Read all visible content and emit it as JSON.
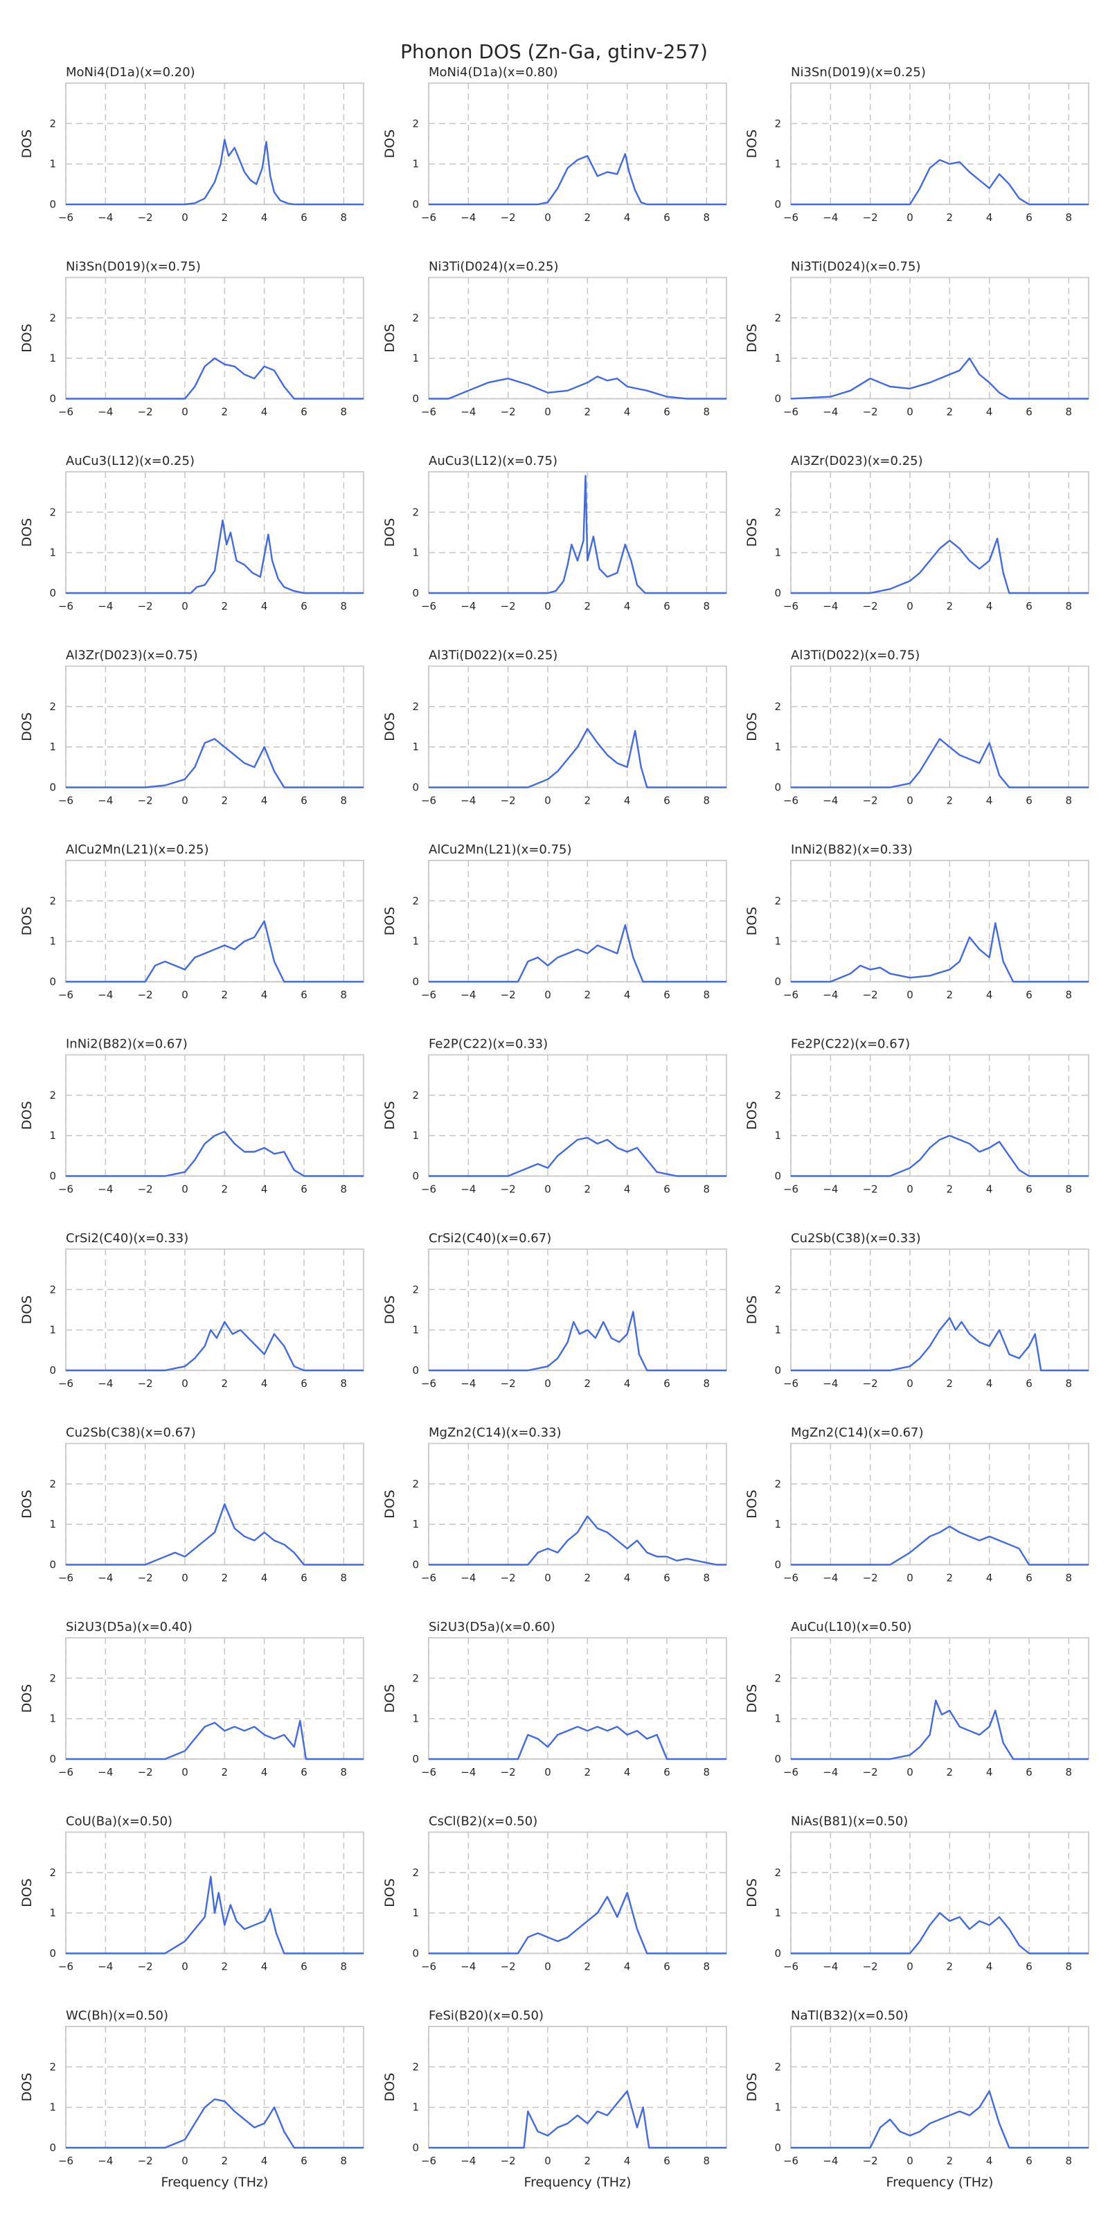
{
  "figure": {
    "title": "Phonon DOS (Zn-Ga, gtinv-257)",
    "line_color": "#4169e1"
  },
  "chart_data": {
    "type": "line",
    "xlabel": "Frequency (THz)",
    "ylabel": "DOS",
    "xlim": [
      -6,
      9
    ],
    "ylim": [
      0,
      3
    ],
    "xticks": [
      -6,
      -4,
      -2,
      0,
      2,
      4,
      6,
      8
    ],
    "yticks": [
      0,
      1,
      2
    ],
    "grid": true,
    "panels": [
      {
        "label": "MoNi4(D1a)(x=0.20)",
        "x": [
          0,
          0.5,
          1,
          1.5,
          1.8,
          2,
          2.2,
          2.5,
          3,
          3.3,
          3.6,
          3.9,
          4.1,
          4.3,
          4.5,
          4.8,
          5.2,
          5.5
        ],
        "y": [
          0,
          0.03,
          0.15,
          0.55,
          1.0,
          1.6,
          1.2,
          1.4,
          0.8,
          0.6,
          0.5,
          0.9,
          1.55,
          0.7,
          0.3,
          0.1,
          0.02,
          0
        ]
      },
      {
        "label": "MoNi4(D1a)(x=0.80)",
        "x": [
          -0.5,
          0,
          0.5,
          1,
          1.5,
          2,
          2.5,
          3,
          3.5,
          3.9,
          4.1,
          4.4,
          4.7,
          5
        ],
        "y": [
          0,
          0.05,
          0.4,
          0.9,
          1.1,
          1.2,
          0.7,
          0.8,
          0.75,
          1.25,
          0.8,
          0.35,
          0.05,
          0
        ]
      },
      {
        "label": "Ni3Sn(D019)(x=0.25)",
        "x": [
          0,
          0.5,
          1,
          1.5,
          2,
          2.5,
          3,
          3.5,
          4,
          4.5,
          5,
          5.5,
          6
        ],
        "y": [
          0,
          0.4,
          0.9,
          1.1,
          1.0,
          1.05,
          0.8,
          0.6,
          0.4,
          0.75,
          0.5,
          0.15,
          0
        ]
      },
      {
        "label": "Ni3Sn(D019)(x=0.75)",
        "x": [
          0,
          0.5,
          1,
          1.5,
          2,
          2.5,
          3,
          3.5,
          4,
          4.5,
          5,
          5.5
        ],
        "y": [
          0,
          0.3,
          0.8,
          1.0,
          0.85,
          0.8,
          0.6,
          0.5,
          0.8,
          0.7,
          0.3,
          0
        ]
      },
      {
        "label": "Ni3Ti(D024)(x=0.25)",
        "x": [
          -5,
          -4,
          -3,
          -2,
          -1,
          0,
          1,
          2,
          2.5,
          3,
          3.5,
          4,
          5,
          6,
          7
        ],
        "y": [
          0,
          0.2,
          0.4,
          0.5,
          0.35,
          0.15,
          0.2,
          0.4,
          0.55,
          0.45,
          0.5,
          0.3,
          0.2,
          0.05,
          0
        ]
      },
      {
        "label": "Ni3Ti(D024)(x=0.75)",
        "x": [
          -6,
          -4,
          -3,
          -2,
          -1,
          0,
          1,
          2,
          2.5,
          3,
          3.5,
          4,
          4.5,
          5
        ],
        "y": [
          0,
          0.05,
          0.2,
          0.5,
          0.3,
          0.25,
          0.4,
          0.6,
          0.7,
          1.0,
          0.6,
          0.4,
          0.15,
          0
        ]
      },
      {
        "label": "AuCu3(L12)(x=0.25)",
        "x": [
          0.3,
          0.6,
          1,
          1.5,
          1.9,
          2.1,
          2.3,
          2.6,
          3,
          3.4,
          3.8,
          4.2,
          4.4,
          4.7,
          5,
          5.5,
          6
        ],
        "y": [
          0,
          0.15,
          0.2,
          0.55,
          1.8,
          1.2,
          1.5,
          0.8,
          0.7,
          0.5,
          0.4,
          1.45,
          0.8,
          0.35,
          0.15,
          0.05,
          0
        ]
      },
      {
        "label": "AuCu3(L12)(x=0.75)",
        "x": [
          0,
          0.4,
          0.8,
          1,
          1.2,
          1.5,
          1.8,
          1.9,
          2,
          2.3,
          2.6,
          3,
          3.5,
          3.9,
          4.2,
          4.5,
          4.9
        ],
        "y": [
          0,
          0.05,
          0.3,
          0.7,
          1.2,
          0.8,
          1.3,
          2.9,
          0.8,
          1.4,
          0.6,
          0.4,
          0.5,
          1.2,
          0.8,
          0.2,
          0
        ]
      },
      {
        "label": "Al3Zr(D023)(x=0.25)",
        "x": [
          -2,
          -1,
          0,
          0.5,
          1,
          1.5,
          2,
          2.5,
          3,
          3.5,
          4,
          4.4,
          4.7,
          5
        ],
        "y": [
          0,
          0.1,
          0.3,
          0.5,
          0.8,
          1.1,
          1.3,
          1.1,
          0.8,
          0.6,
          0.8,
          1.35,
          0.5,
          0
        ]
      },
      {
        "label": "Al3Zr(D023)(x=0.75)",
        "x": [
          -2,
          -1,
          0,
          0.5,
          1,
          1.5,
          2,
          2.5,
          3,
          3.5,
          4,
          4.5,
          5
        ],
        "y": [
          0,
          0.05,
          0.2,
          0.5,
          1.1,
          1.2,
          1.0,
          0.8,
          0.6,
          0.5,
          1.0,
          0.4,
          0
        ]
      },
      {
        "label": "Al3Ti(D022)(x=0.25)",
        "x": [
          -1,
          0,
          0.5,
          1,
          1.5,
          2,
          2.5,
          3,
          3.5,
          4,
          4.4,
          4.7,
          5
        ],
        "y": [
          0,
          0.2,
          0.4,
          0.7,
          1.0,
          1.45,
          1.1,
          0.8,
          0.6,
          0.5,
          1.4,
          0.5,
          0
        ]
      },
      {
        "label": "Al3Ti(D022)(x=0.75)",
        "x": [
          -1,
          0,
          0.5,
          1,
          1.5,
          2,
          2.5,
          3,
          3.5,
          4,
          4.5,
          5
        ],
        "y": [
          0,
          0.1,
          0.4,
          0.8,
          1.2,
          1.0,
          0.8,
          0.7,
          0.6,
          1.1,
          0.3,
          0
        ]
      },
      {
        "label": "AlCu2Mn(L21)(x=0.25)",
        "x": [
          -2,
          -1.5,
          -1,
          0,
          0.5,
          1,
          1.5,
          2,
          2.5,
          3,
          3.5,
          4,
          4.5,
          5
        ],
        "y": [
          0,
          0.4,
          0.5,
          0.3,
          0.6,
          0.7,
          0.8,
          0.9,
          0.8,
          1.0,
          1.1,
          1.5,
          0.5,
          0
        ]
      },
      {
        "label": "AlCu2Mn(L21)(x=0.75)",
        "x": [
          -1.5,
          -1,
          -0.5,
          0,
          0.5,
          1,
          1.5,
          2,
          2.5,
          3,
          3.5,
          3.9,
          4.3,
          4.8
        ],
        "y": [
          0,
          0.5,
          0.6,
          0.4,
          0.6,
          0.7,
          0.8,
          0.7,
          0.9,
          0.8,
          0.7,
          1.4,
          0.6,
          0
        ]
      },
      {
        "label": "InNi2(B82)(x=0.33)",
        "x": [
          -4,
          -3,
          -2.5,
          -2,
          -1.5,
          -1,
          0,
          1,
          2,
          2.5,
          3,
          3.5,
          4,
          4.3,
          4.7,
          5.2
        ],
        "y": [
          0,
          0.2,
          0.4,
          0.3,
          0.35,
          0.2,
          0.1,
          0.15,
          0.3,
          0.5,
          1.1,
          0.8,
          0.6,
          1.45,
          0.5,
          0
        ]
      },
      {
        "label": "InNi2(B82)(x=0.67)",
        "x": [
          -1,
          0,
          0.5,
          1,
          1.5,
          2,
          2.5,
          3,
          3.5,
          4,
          4.5,
          5,
          5.5,
          6
        ],
        "y": [
          0,
          0.1,
          0.4,
          0.8,
          1.0,
          1.1,
          0.8,
          0.6,
          0.6,
          0.7,
          0.55,
          0.6,
          0.15,
          0
        ]
      },
      {
        "label": "Fe2P(C22)(x=0.33)",
        "x": [
          -2,
          -1,
          -0.5,
          0,
          0.5,
          1,
          1.5,
          2,
          2.5,
          3,
          3.5,
          4,
          4.5,
          5,
          5.5,
          6.5
        ],
        "y": [
          0,
          0.2,
          0.3,
          0.2,
          0.5,
          0.7,
          0.9,
          0.95,
          0.8,
          0.9,
          0.7,
          0.6,
          0.7,
          0.4,
          0.1,
          0
        ]
      },
      {
        "label": "Fe2P(C22)(x=0.67)",
        "x": [
          -1,
          0,
          0.5,
          1,
          1.5,
          2,
          2.5,
          3,
          3.5,
          4,
          4.5,
          5,
          5.5,
          6
        ],
        "y": [
          0,
          0.2,
          0.4,
          0.7,
          0.9,
          1.0,
          0.9,
          0.8,
          0.6,
          0.7,
          0.85,
          0.5,
          0.15,
          0
        ]
      },
      {
        "label": "CrSi2(C40)(x=0.33)",
        "x": [
          -1,
          0,
          0.5,
          1,
          1.3,
          1.6,
          2,
          2.4,
          2.8,
          3.2,
          3.6,
          4,
          4.5,
          5,
          5.5,
          6
        ],
        "y": [
          0,
          0.1,
          0.3,
          0.6,
          1.0,
          0.8,
          1.2,
          0.9,
          1.0,
          0.8,
          0.6,
          0.4,
          0.9,
          0.6,
          0.1,
          0
        ]
      },
      {
        "label": "CrSi2(C40)(x=0.67)",
        "x": [
          -1,
          0,
          0.5,
          1,
          1.3,
          1.6,
          2,
          2.4,
          2.8,
          3.2,
          3.6,
          4,
          4.3,
          4.6,
          5
        ],
        "y": [
          0,
          0.1,
          0.3,
          0.7,
          1.2,
          0.9,
          1.0,
          0.8,
          1.2,
          0.8,
          0.7,
          0.9,
          1.45,
          0.4,
          0
        ]
      },
      {
        "label": "Cu2Sb(C38)(x=0.33)",
        "x": [
          -1,
          0,
          0.5,
          1,
          1.5,
          2,
          2.3,
          2.6,
          3,
          3.5,
          4,
          4.5,
          5,
          5.5,
          6,
          6.3,
          6.6
        ],
        "y": [
          0,
          0.1,
          0.3,
          0.6,
          1.0,
          1.3,
          1.0,
          1.2,
          0.9,
          0.7,
          0.6,
          1.0,
          0.4,
          0.3,
          0.6,
          0.9,
          0
        ]
      },
      {
        "label": "Cu2Sb(C38)(x=0.67)",
        "x": [
          -2,
          -1,
          -0.5,
          0,
          0.5,
          1,
          1.5,
          2,
          2.5,
          3,
          3.5,
          4,
          4.5,
          5,
          5.5,
          6
        ],
        "y": [
          0,
          0.2,
          0.3,
          0.2,
          0.4,
          0.6,
          0.8,
          1.5,
          0.9,
          0.7,
          0.6,
          0.8,
          0.6,
          0.5,
          0.3,
          0
        ]
      },
      {
        "label": "MgZn2(C14)(x=0.33)",
        "x": [
          -1,
          -0.5,
          0,
          0.5,
          1,
          1.5,
          2,
          2.5,
          3,
          3.5,
          4,
          4.5,
          5,
          5.5,
          6,
          6.5,
          7,
          8.5
        ],
        "y": [
          0,
          0.3,
          0.4,
          0.3,
          0.6,
          0.8,
          1.2,
          0.9,
          0.8,
          0.6,
          0.4,
          0.6,
          0.3,
          0.2,
          0.2,
          0.1,
          0.15,
          0
        ]
      },
      {
        "label": "MgZn2(C14)(x=0.67)",
        "x": [
          -1,
          0,
          0.5,
          1,
          1.5,
          2,
          2.5,
          3,
          3.5,
          4,
          4.5,
          5,
          5.5,
          6
        ],
        "y": [
          0,
          0.3,
          0.5,
          0.7,
          0.8,
          0.95,
          0.8,
          0.7,
          0.6,
          0.7,
          0.6,
          0.5,
          0.4,
          0
        ]
      },
      {
        "label": "Si2U3(D5a)(x=0.40)",
        "x": [
          -1,
          0,
          0.5,
          1,
          1.5,
          2,
          2.5,
          3,
          3.5,
          4,
          4.5,
          5,
          5.5,
          5.8,
          6.1
        ],
        "y": [
          0,
          0.2,
          0.5,
          0.8,
          0.9,
          0.7,
          0.8,
          0.7,
          0.8,
          0.6,
          0.5,
          0.6,
          0.3,
          0.95,
          0
        ]
      },
      {
        "label": "Si2U3(D5a)(x=0.60)",
        "x": [
          -1.5,
          -1,
          -0.5,
          0,
          0.5,
          1,
          1.5,
          2,
          2.5,
          3,
          3.5,
          4,
          4.5,
          5,
          5.5,
          6
        ],
        "y": [
          0,
          0.6,
          0.5,
          0.3,
          0.6,
          0.7,
          0.8,
          0.7,
          0.8,
          0.7,
          0.8,
          0.6,
          0.7,
          0.5,
          0.6,
          0
        ]
      },
      {
        "label": "AuCu(L10)(x=0.50)",
        "x": [
          -1,
          0,
          0.5,
          1,
          1.3,
          1.6,
          2,
          2.5,
          3,
          3.5,
          4,
          4.3,
          4.7,
          5.2
        ],
        "y": [
          0,
          0.1,
          0.3,
          0.6,
          1.45,
          1.1,
          1.2,
          0.8,
          0.7,
          0.6,
          0.8,
          1.2,
          0.4,
          0
        ]
      },
      {
        "label": "CoU(Ba)(x=0.50)",
        "x": [
          -1,
          0,
          0.5,
          1,
          1.3,
          1.5,
          1.7,
          2,
          2.3,
          2.6,
          3,
          3.5,
          4,
          4.3,
          4.6,
          5
        ],
        "y": [
          0,
          0.3,
          0.6,
          0.9,
          1.9,
          1.0,
          1.5,
          0.7,
          1.2,
          0.8,
          0.6,
          0.7,
          0.8,
          1.1,
          0.5,
          0
        ]
      },
      {
        "label": "CsCl(B2)(x=0.50)",
        "x": [
          -1.5,
          -1,
          -0.5,
          0,
          0.5,
          1,
          1.5,
          2,
          2.5,
          3,
          3.5,
          4,
          4.5,
          5
        ],
        "y": [
          0,
          0.4,
          0.5,
          0.4,
          0.3,
          0.4,
          0.6,
          0.8,
          1.0,
          1.4,
          0.9,
          1.5,
          0.6,
          0
        ]
      },
      {
        "label": "NiAs(B81)(x=0.50)",
        "x": [
          0,
          0.5,
          1,
          1.5,
          2,
          2.5,
          3,
          3.5,
          4,
          4.5,
          5,
          5.5,
          6
        ],
        "y": [
          0,
          0.3,
          0.7,
          1.0,
          0.8,
          0.9,
          0.6,
          0.8,
          0.7,
          0.9,
          0.6,
          0.2,
          0
        ]
      },
      {
        "label": "WC(Bh)(x=0.50)",
        "x": [
          -1,
          0,
          0.5,
          1,
          1.5,
          2,
          2.5,
          3,
          3.5,
          4,
          4.5,
          5,
          5.5
        ],
        "y": [
          0,
          0.2,
          0.6,
          1.0,
          1.2,
          1.15,
          0.9,
          0.7,
          0.5,
          0.6,
          1.0,
          0.4,
          0
        ]
      },
      {
        "label": "FeSi(B20)(x=0.50)",
        "x": [
          -1.2,
          -1,
          -0.5,
          0,
          0.5,
          1,
          1.5,
          2,
          2.5,
          3,
          3.5,
          4,
          4.5,
          4.8,
          5.1
        ],
        "y": [
          0,
          0.9,
          0.4,
          0.3,
          0.5,
          0.6,
          0.8,
          0.6,
          0.9,
          0.8,
          1.1,
          1.4,
          0.5,
          1.0,
          0
        ]
      },
      {
        "label": "NaTl(B32)(x=0.50)",
        "x": [
          -2,
          -1.5,
          -1,
          -0.5,
          0,
          0.5,
          1,
          1.5,
          2,
          2.5,
          3,
          3.5,
          4,
          4.5,
          5
        ],
        "y": [
          0,
          0.5,
          0.7,
          0.4,
          0.3,
          0.4,
          0.6,
          0.7,
          0.8,
          0.9,
          0.8,
          1.0,
          1.4,
          0.6,
          0
        ]
      }
    ]
  }
}
